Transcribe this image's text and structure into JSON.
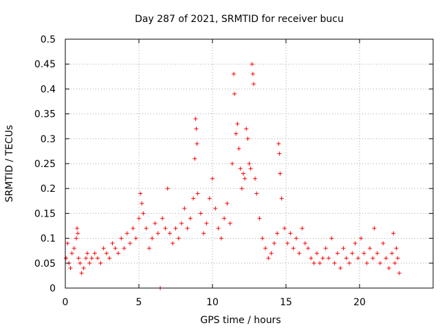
{
  "chart_data": {
    "type": "scatter",
    "title": "Day 287 of 2021, SRMTID for receiver bucu",
    "xlabel": "GPS time / hours",
    "ylabel": "SRMTID / TECUs",
    "xlim": [
      0,
      25
    ],
    "ylim": [
      0,
      0.5
    ],
    "xticks": [
      0,
      5,
      10,
      15,
      20
    ],
    "xtick_labels": [
      "0",
      "5",
      "10",
      "15",
      "20"
    ],
    "yticks": [
      0,
      0.05,
      0.1,
      0.15,
      0.2,
      0.25,
      0.3,
      0.35,
      0.4,
      0.45,
      0.5
    ],
    "ytick_labels": [
      "0",
      "0.05",
      "0.1",
      "0.15",
      "0.2",
      "0.25",
      "0.3",
      "0.35",
      "0.4",
      "0.45",
      "0.5"
    ],
    "grid": true,
    "marker": "+",
    "color": "#ff0000",
    "series": [
      {
        "name": "SRMTID",
        "points": [
          [
            0.05,
            0.06
          ],
          [
            0.15,
            0.09
          ],
          [
            0.25,
            0.05
          ],
          [
            0.35,
            0.04
          ],
          [
            0.45,
            0.07
          ],
          [
            0.6,
            0.08
          ],
          [
            0.75,
            0.1
          ],
          [
            0.8,
            0.12
          ],
          [
            0.85,
            0.11
          ],
          [
            0.9,
            0.06
          ],
          [
            1.0,
            0.05
          ],
          [
            1.1,
            0.03
          ],
          [
            1.25,
            0.04
          ],
          [
            1.4,
            0.06
          ],
          [
            1.5,
            0.07
          ],
          [
            1.65,
            0.05
          ],
          [
            1.8,
            0.06
          ],
          [
            2.0,
            0.07
          ],
          [
            2.2,
            0.06
          ],
          [
            2.4,
            0.05
          ],
          [
            2.6,
            0.08
          ],
          [
            2.8,
            0.07
          ],
          [
            3.0,
            0.06
          ],
          [
            3.2,
            0.09
          ],
          [
            3.4,
            0.08
          ],
          [
            3.6,
            0.07
          ],
          [
            3.8,
            0.1
          ],
          [
            4.0,
            0.08
          ],
          [
            4.2,
            0.11
          ],
          [
            4.4,
            0.09
          ],
          [
            4.6,
            0.12
          ],
          [
            4.8,
            0.1
          ],
          [
            5.0,
            0.14
          ],
          [
            5.1,
            0.19
          ],
          [
            5.2,
            0.17
          ],
          [
            5.3,
            0.15
          ],
          [
            5.5,
            0.12
          ],
          [
            5.7,
            0.08
          ],
          [
            5.9,
            0.1
          ],
          [
            6.1,
            0.13
          ],
          [
            6.3,
            0.11
          ],
          [
            6.45,
            0.0
          ],
          [
            6.6,
            0.14
          ],
          [
            6.8,
            0.12
          ],
          [
            6.95,
            0.2
          ],
          [
            7.1,
            0.11
          ],
          [
            7.3,
            0.09
          ],
          [
            7.5,
            0.12
          ],
          [
            7.7,
            0.1
          ],
          [
            7.9,
            0.13
          ],
          [
            8.1,
            0.16
          ],
          [
            8.3,
            0.12
          ],
          [
            8.5,
            0.14
          ],
          [
            8.7,
            0.18
          ],
          [
            8.8,
            0.26
          ],
          [
            8.85,
            0.34
          ],
          [
            8.9,
            0.32
          ],
          [
            8.95,
            0.29
          ],
          [
            9.0,
            0.19
          ],
          [
            9.2,
            0.15
          ],
          [
            9.4,
            0.11
          ],
          [
            9.6,
            0.13
          ],
          [
            9.8,
            0.18
          ],
          [
            10.0,
            0.22
          ],
          [
            10.2,
            0.16
          ],
          [
            10.4,
            0.12
          ],
          [
            10.6,
            0.1
          ],
          [
            10.8,
            0.14
          ],
          [
            11.0,
            0.17
          ],
          [
            11.2,
            0.13
          ],
          [
            11.35,
            0.25
          ],
          [
            11.45,
            0.43
          ],
          [
            11.5,
            0.39
          ],
          [
            11.6,
            0.31
          ],
          [
            11.7,
            0.33
          ],
          [
            11.8,
            0.28
          ],
          [
            11.9,
            0.24
          ],
          [
            12.0,
            0.2
          ],
          [
            12.1,
            0.23
          ],
          [
            12.2,
            0.22
          ],
          [
            12.3,
            0.32
          ],
          [
            12.4,
            0.3
          ],
          [
            12.5,
            0.25
          ],
          [
            12.6,
            0.24
          ],
          [
            12.7,
            0.45
          ],
          [
            12.75,
            0.43
          ],
          [
            12.8,
            0.41
          ],
          [
            12.9,
            0.22
          ],
          [
            13.0,
            0.19
          ],
          [
            13.2,
            0.14
          ],
          [
            13.4,
            0.1
          ],
          [
            13.6,
            0.08
          ],
          [
            13.8,
            0.06
          ],
          [
            14.0,
            0.07
          ],
          [
            14.2,
            0.09
          ],
          [
            14.4,
            0.11
          ],
          [
            14.5,
            0.29
          ],
          [
            14.55,
            0.27
          ],
          [
            14.6,
            0.23
          ],
          [
            14.7,
            0.18
          ],
          [
            14.9,
            0.12
          ],
          [
            15.1,
            0.09
          ],
          [
            15.3,
            0.11
          ],
          [
            15.5,
            0.08
          ],
          [
            15.7,
            0.1
          ],
          [
            15.9,
            0.07
          ],
          [
            16.1,
            0.12
          ],
          [
            16.3,
            0.09
          ],
          [
            16.5,
            0.08
          ],
          [
            16.7,
            0.06
          ],
          [
            16.9,
            0.05
          ],
          [
            17.1,
            0.07
          ],
          [
            17.3,
            0.05
          ],
          [
            17.5,
            0.06
          ],
          [
            17.7,
            0.08
          ],
          [
            17.9,
            0.06
          ],
          [
            18.1,
            0.1
          ],
          [
            18.3,
            0.05
          ],
          [
            18.5,
            0.07
          ],
          [
            18.7,
            0.04
          ],
          [
            18.9,
            0.08
          ],
          [
            19.1,
            0.06
          ],
          [
            19.3,
            0.05
          ],
          [
            19.5,
            0.07
          ],
          [
            19.7,
            0.09
          ],
          [
            19.9,
            0.06
          ],
          [
            20.1,
            0.1
          ],
          [
            20.3,
            0.07
          ],
          [
            20.5,
            0.05
          ],
          [
            20.7,
            0.08
          ],
          [
            20.9,
            0.06
          ],
          [
            21.0,
            0.12
          ],
          [
            21.2,
            0.07
          ],
          [
            21.4,
            0.05
          ],
          [
            21.6,
            0.09
          ],
          [
            21.8,
            0.06
          ],
          [
            22.0,
            0.04
          ],
          [
            22.2,
            0.07
          ],
          [
            22.3,
            0.11
          ],
          [
            22.4,
            0.05
          ],
          [
            22.5,
            0.08
          ],
          [
            22.6,
            0.06
          ],
          [
            22.7,
            0.03
          ]
        ]
      }
    ]
  }
}
